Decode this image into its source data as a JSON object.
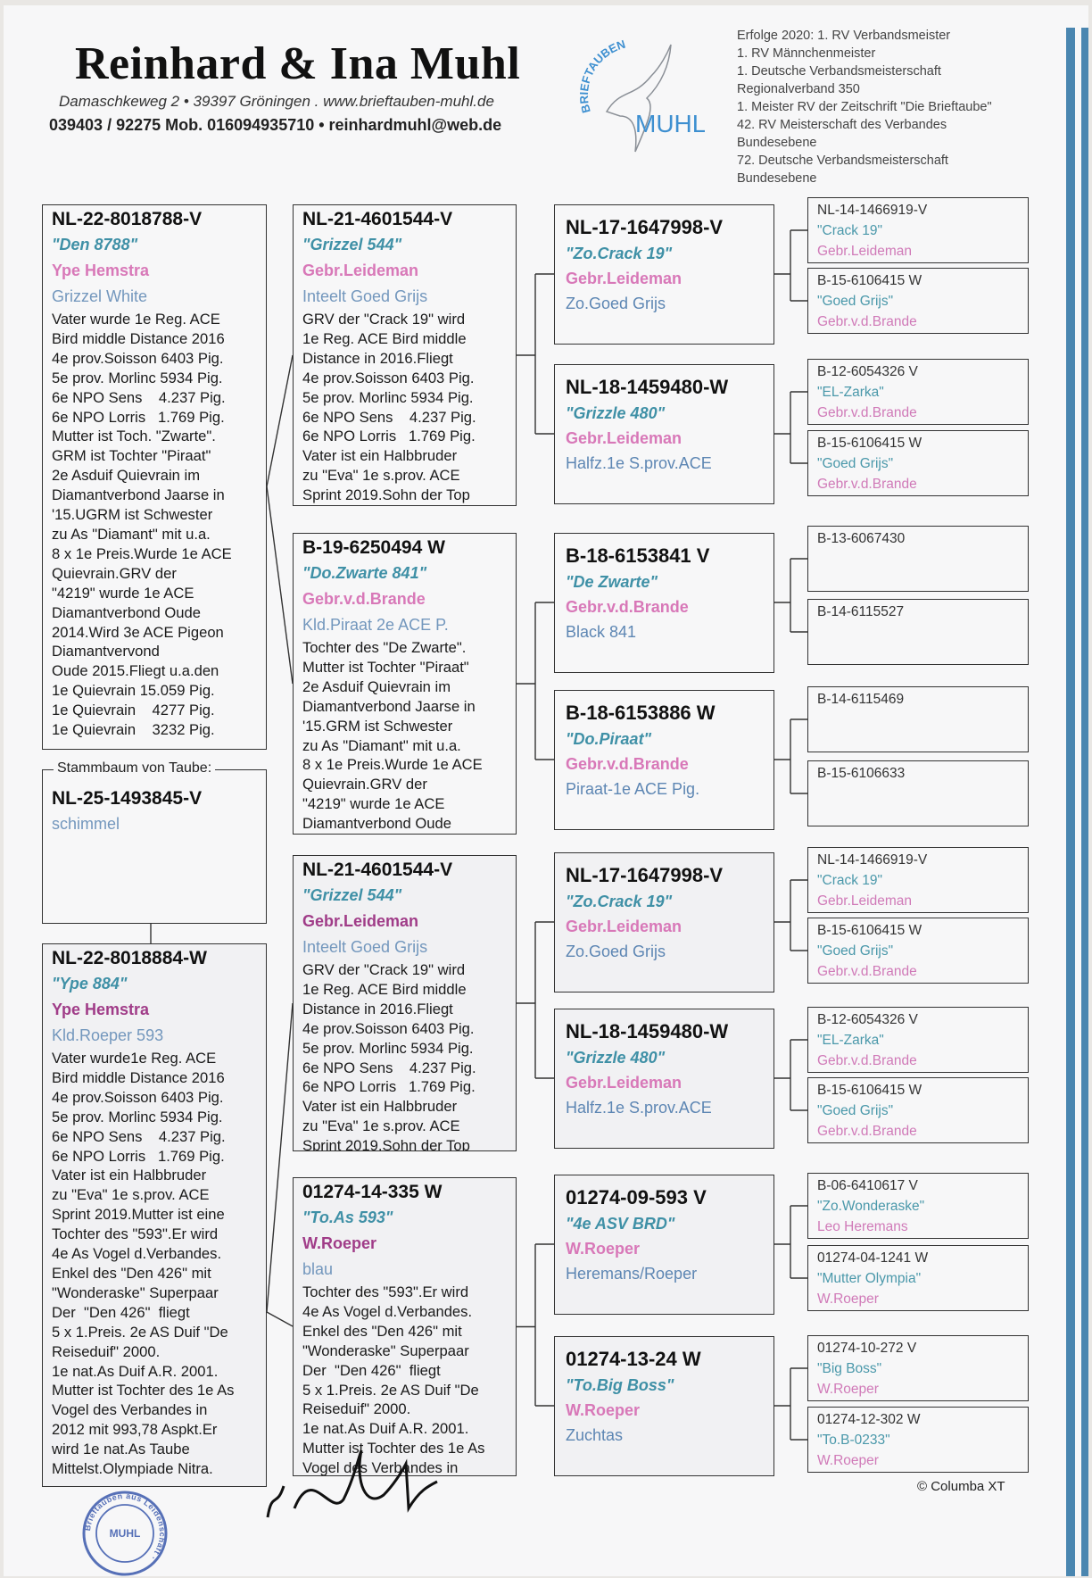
{
  "header": {
    "title": "Reinhard & Ina Muhl",
    "address": "Damaschkeweg 2 • 39397 Gröningen . www.brieftauben-muhl.de",
    "contact": "039403 / 92275 Mob. 016094935710 • reinhardmuhl@web.de",
    "logo": {
      "arc_text": "BRIEFTAUBEN",
      "word": "MUHL",
      "color": "#3d8fd0"
    },
    "achievements": [
      "Erfolge 2020: 1. RV Verbandsmeister",
      "1. RV Männchenmeister",
      "1. Deutsche Verbandsmeisterschaft",
      "Regionalverband 350",
      "1. Meister RV der Zeitschrift \"Die Brieftaube\"",
      "42. RV Meisterschaft des Verbandes",
      "Bundesebene",
      "72. Deutsche Verbandsmeisterschaft",
      "Bundesebene"
    ]
  },
  "colors": {
    "accent_stripe": "#4a86b0",
    "name": "#3f90a6",
    "breeder": "#d878b8",
    "stamp": "#2f4fa8"
  },
  "subject": {
    "label": "Stammbaum von Taube:",
    "id": "NL-25-1493845-V",
    "color": "schimmel"
  },
  "parents": [
    {
      "id": "NL-22-8018788-V",
      "name": "\"Den 8788\"",
      "breeder": "Ype Hemstra",
      "color": "Grizzel White",
      "lines": [
        "Vater wurde 1e Reg. ACE",
        "Bird middle Distance 2016",
        "4e prov.Soisson 6403 Pig.",
        "5e prov. Morlinc 5934 Pig.",
        "6e NPO Sens    4.237 Pig.",
        "6e NPO Lorris   1.769 Pig.",
        "Mutter ist Toch. \"Zwarte\".",
        "GRM ist Tochter \"Piraat\"",
        "2e Asduif Quievrain im",
        "Diamantverbond Jaarse in",
        "'15.UGRM ist Schwester",
        "zu As \"Diamant\" mit u.a.",
        "8 x 1e Preis.Wurde 1e ACE",
        "Quievrain.GRV der",
        "\"4219\" wurde 1e ACE",
        "Diamantverbond Oude",
        "2014.Wird 3e ACE Pigeon",
        "Diamantvervond",
        "Oude 2015.Fliegt u.a.den",
        "1e Quievrain 15.059 Pig.",
        "1e Quievrain    4277 Pig.",
        "1e Quievrain    3232 Pig."
      ]
    },
    {
      "id": "NL-22-8018884-W",
      "name": "\"Ype 884\"",
      "breeder": "Ype Hemstra",
      "color": "Kld.Roeper 593",
      "lines": [
        "Vater wurde1e Reg. ACE",
        "Bird middle Distance 2016",
        "4e prov.Soisson 6403 Pig.",
        "5e prov. Morlinc 5934 Pig.",
        "6e NPO Sens    4.237 Pig.",
        "6e NPO Lorris   1.769 Pig.",
        "Vater ist ein Halbbruder",
        "zu \"Eva\" 1e s.prov. ACE",
        "Sprint 2019.Mutter ist eine",
        "Tochter des \"593\".Er wird",
        "4e As Vogel d.Verbandes.",
        "Enkel des \"Den 426\" mit",
        "\"Wonderaske\" Superpaar",
        "Der  \"Den 426\"  fliegt",
        "5 x 1.Preis. 2e AS Duif \"De",
        "Reiseduif\" 2000.",
        "1e nat.As Duif A.R. 2001.",
        "Mutter ist Tochter des 1e As",
        "Vogel des Verbandes in",
        "2012 mit 993,78 Aspkt.Er",
        "wird 1e nat.As Taube",
        "Mittelst.Olympiade Nitra."
      ]
    }
  ],
  "grandparents": [
    {
      "id": "NL-21-4601544-V",
      "name": "\"Grizzel 544\"",
      "breeder": "Gebr.Leideman",
      "color": "Inteelt Goed Grijs",
      "lines": [
        "GRV der \"Crack 19\" wird",
        "1e Reg. ACE Bird middle",
        "Distance in 2016.Fliegt",
        "4e prov.Soisson 6403 Pig.",
        "5e prov. Morlinc 5934 Pig.",
        "6e NPO Sens    4.237 Pig.",
        "6e NPO Lorris   1.769 Pig.",
        "Vater ist ein Halbbruder",
        "zu \"Eva\" 1e s.prov. ACE",
        "Sprint 2019.Sohn der Top"
      ]
    },
    {
      "id": "B-19-6250494 W",
      "name": "\"Do.Zwarte 841\"",
      "breeder": "Gebr.v.d.Brande",
      "color": "Kld.Piraat 2e ACE P.",
      "lines": [
        "Tochter des \"De Zwarte\".",
        "Mutter ist Tochter \"Piraat\"",
        "2e Asduif Quievrain im",
        "Diamantverbond Jaarse in",
        "'15.GRM ist Schwester",
        "zu As \"Diamant\" mit u.a.",
        "8 x 1e Preis.Wurde 1e ACE",
        "Quievrain.GRV der",
        "\"4219\" wurde 1e ACE",
        "Diamantverbond Oude"
      ]
    },
    {
      "id": "NL-21-4601544-V",
      "name": "\"Grizzel 544\"",
      "breeder": "Gebr.Leideman",
      "color": "Inteelt Goed Grijs",
      "lines": [
        "GRV der \"Crack 19\" wird",
        "1e Reg. ACE Bird middle",
        "Distance in 2016.Fliegt",
        "4e prov.Soisson 6403 Pig.",
        "5e prov. Morlinc 5934 Pig.",
        "6e NPO Sens    4.237 Pig.",
        "6e NPO Lorris   1.769 Pig.",
        "Vater ist ein Halbbruder",
        "zu \"Eva\" 1e s.prov. ACE",
        "Sprint 2019.Sohn der Top"
      ]
    },
    {
      "id": "01274-14-335 W",
      "name": "\"To.As 593\"",
      "breeder": "W.Roeper",
      "color": "blau",
      "lines": [
        "Tochter des \"593\".Er wird",
        "4e As Vogel d.Verbandes.",
        "Enkel des \"Den 426\" mit",
        "\"Wonderaske\" Superpaar",
        "Der  \"Den 426\"  fliegt",
        "5 x 1.Preis. 2e AS Duif \"De",
        "Reiseduif\" 2000.",
        "1e nat.As Duif A.R. 2001.",
        "Mutter ist Tochter des 1e As",
        "Vogel des Verbandes in"
      ]
    }
  ],
  "great_grandparents": [
    {
      "id": "NL-17-1647998-V",
      "name": "\"Zo.Crack 19\"",
      "breeder": "Gebr.Leideman",
      "color": "Zo.Goed Grijs"
    },
    {
      "id": "NL-18-1459480-W",
      "name": "\"Grizzle 480\"",
      "breeder": "Gebr.Leideman",
      "color": "Halfz.1e S.prov.ACE"
    },
    {
      "id": "B-18-6153841 V",
      "name": "\"De Zwarte\"",
      "breeder": "Gebr.v.d.Brande",
      "color": "Black 841"
    },
    {
      "id": "B-18-6153886 W",
      "name": "\"Do.Piraat\"",
      "breeder": "Gebr.v.d.Brande",
      "color": "Piraat-1e ACE Pig."
    },
    {
      "id": "NL-17-1647998-V",
      "name": "\"Zo.Crack 19\"",
      "breeder": "Gebr.Leideman",
      "color": "Zo.Goed Grijs"
    },
    {
      "id": "NL-18-1459480-W",
      "name": "\"Grizzle 480\"",
      "breeder": "Gebr.Leideman",
      "color": "Halfz.1e S.prov.ACE"
    },
    {
      "id": "01274-09-593 V",
      "name": "\"4e ASV BRD\"",
      "breeder": "W.Roeper",
      "color": "Heremans/Roeper"
    },
    {
      "id": "01274-13-24 W",
      "name": "\"To.Big Boss\"",
      "breeder": "W.Roeper",
      "color": "Zuchtas"
    }
  ],
  "great_great_grandparents": [
    {
      "id": "NL-14-1466919-V",
      "name": "\"Crack 19\"",
      "breeder": "Gebr.Leideman"
    },
    {
      "id": "B-15-6106415 W",
      "name": "\"Goed Grijs\"",
      "breeder": "Gebr.v.d.Brande"
    },
    {
      "id": "B-12-6054326 V",
      "name": "\"EL-Zarka\"",
      "breeder": "Gebr.v.d.Brande"
    },
    {
      "id": "B-15-6106415 W",
      "name": "\"Goed Grijs\"",
      "breeder": "Gebr.v.d.Brande"
    },
    {
      "id": "B-13-6067430"
    },
    {
      "id": "B-14-6115527"
    },
    {
      "id": "B-14-6115469"
    },
    {
      "id": "B-15-6106633"
    },
    {
      "id": "NL-14-1466919-V",
      "name": "\"Crack 19\"",
      "breeder": "Gebr.Leideman"
    },
    {
      "id": "B-15-6106415 W",
      "name": "\"Goed Grijs\"",
      "breeder": "Gebr.v.d.Brande"
    },
    {
      "id": "B-12-6054326 V",
      "name": "\"EL-Zarka\"",
      "breeder": "Gebr.v.d.Brande"
    },
    {
      "id": "B-15-6106415 W",
      "name": "\"Goed Grijs\"",
      "breeder": "Gebr.v.d.Brande"
    },
    {
      "id": "B-06-6410617 V",
      "name": "\"Zo.Wonderaske\"",
      "breeder": "Leo Heremans"
    },
    {
      "id": "01274-04-1241 W",
      "name": "\"Mutter Olympia\"",
      "breeder": "W.Roeper"
    },
    {
      "id": "01274-10-272 V",
      "name": "\"Big Boss\"",
      "breeder": "W.Roeper"
    },
    {
      "id": "01274-12-302 W",
      "name": "\"To.B-0233\"",
      "breeder": "W.Roeper"
    }
  ],
  "stamp": {
    "text": "Brieftauben aus Leidenschaft",
    "center": "MUHL"
  },
  "footer": {
    "copyright": "© Columba XT"
  }
}
